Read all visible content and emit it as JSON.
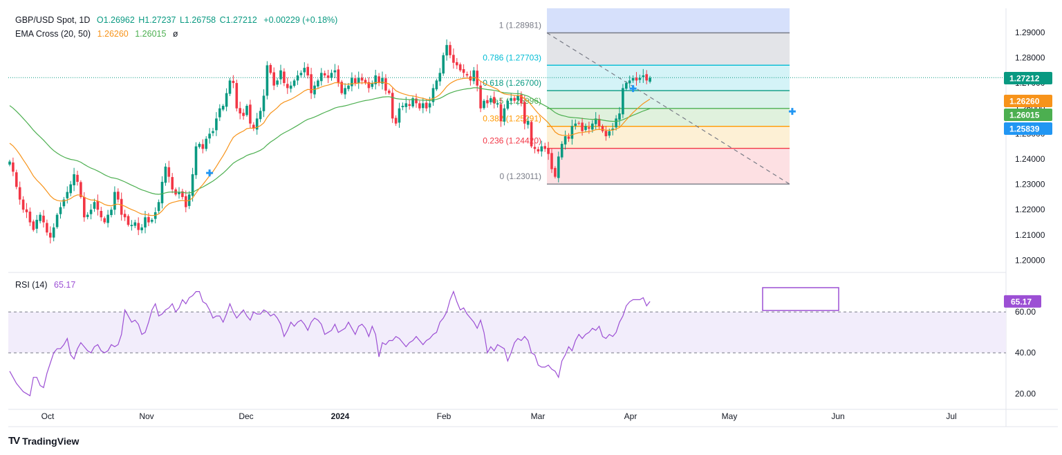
{
  "header": {
    "symbol": "GBP/USD Spot, 1D",
    "ohlc": {
      "o": "O1.26962",
      "h": "H1.27237",
      "l": "L1.26758",
      "c": "C1.27212",
      "chg": "+0.00229 (+0.18%)"
    },
    "ema_label": "EMA Cross (20, 50)",
    "ema20_value": "1.26260",
    "ema50_value": "1.26015",
    "ema_symbol": "ø",
    "rsi_label": "RSI (14)",
    "rsi_value": "65.17"
  },
  "brand": {
    "name": "TradingView",
    "logo_text": "TV"
  },
  "colors": {
    "up": "#089981",
    "down": "#f23645",
    "ema20": "#f7931a",
    "ema50": "#4caf50",
    "rsi": "#9c4fd4",
    "current_price": "#089981",
    "accent_blue": "#2196f3"
  },
  "chart_data": [
    {
      "type": "candlestick",
      "title": "GBP/USD Spot, 1D",
      "x_ticks": [
        "Oct",
        "Nov",
        "Dec",
        "2024",
        "Feb",
        "Mar",
        "Apr",
        "May",
        "Jun",
        "Jul"
      ],
      "y_ticks": [
        "1.29000",
        "1.28000",
        "1.27000",
        "1.26000",
        "1.25000",
        "1.24000",
        "1.23000",
        "1.22000",
        "1.21000",
        "1.20000"
      ],
      "ylim": [
        1.1955,
        1.2995
      ],
      "series_close": [
        1.239,
        1.235,
        1.229,
        1.224,
        1.22,
        1.219,
        1.215,
        1.212,
        1.216,
        1.218,
        1.215,
        1.211,
        1.209,
        1.213,
        1.218,
        1.221,
        1.224,
        1.227,
        1.23,
        1.234,
        1.231,
        1.225,
        1.217,
        1.218,
        1.22,
        1.223,
        1.22,
        1.217,
        1.215,
        1.218,
        1.22,
        1.227,
        1.224,
        1.218,
        1.217,
        1.214,
        1.214,
        1.215,
        1.212,
        1.213,
        1.217,
        1.215,
        1.216,
        1.219,
        1.223,
        1.231,
        1.237,
        1.233,
        1.228,
        1.226,
        1.227,
        1.225,
        1.221,
        1.226,
        1.234,
        1.245,
        1.246,
        1.244,
        1.248,
        1.25,
        1.251,
        1.256,
        1.26,
        1.261,
        1.266,
        1.271,
        1.27,
        1.26,
        1.258,
        1.257,
        1.261,
        1.254,
        1.252,
        1.256,
        1.259,
        1.265,
        1.277,
        1.274,
        1.269,
        1.271,
        1.275,
        1.27,
        1.268,
        1.269,
        1.271,
        1.273,
        1.274,
        1.276,
        1.273,
        1.266,
        1.269,
        1.271,
        1.274,
        1.273,
        1.272,
        1.274,
        1.275,
        1.27,
        1.266,
        1.268,
        1.269,
        1.272,
        1.27,
        1.272,
        1.271,
        1.27,
        1.268,
        1.27,
        1.273,
        1.27,
        1.272,
        1.267,
        1.266,
        1.256,
        1.254,
        1.26,
        1.261,
        1.262,
        1.261,
        1.264,
        1.262,
        1.26,
        1.262,
        1.26,
        1.262,
        1.268,
        1.271,
        1.274,
        1.281,
        1.285,
        1.281,
        1.278,
        1.277,
        1.275,
        1.274,
        1.273,
        1.271,
        1.275,
        1.269,
        1.26,
        1.263,
        1.262,
        1.264,
        1.262,
        1.262,
        1.255,
        1.26,
        1.263,
        1.264,
        1.263,
        1.265,
        1.262,
        1.254,
        1.255,
        1.245,
        1.244,
        1.243,
        1.245,
        1.244,
        1.242,
        1.236,
        1.233,
        1.241,
        1.246,
        1.249,
        1.248,
        1.253,
        1.254,
        1.254,
        1.251,
        1.253,
        1.252,
        1.254,
        1.256,
        1.253,
        1.251,
        1.249,
        1.251,
        1.252,
        1.256,
        1.258,
        1.268,
        1.27,
        1.271,
        1.272,
        1.271,
        1.272,
        1.273,
        1.271,
        1.2721
      ],
      "ema20_last": 1.2626,
      "ema50_last": 1.26015,
      "current_price": 1.27212,
      "price_labels": [
        "1.27212",
        "1.26260",
        "1.26015",
        "1.25839"
      ],
      "fibonacci": [
        {
          "ratio": "1",
          "level": 1.28981,
          "label": "1 (1.28981)"
        },
        {
          "ratio": "0.786",
          "level": 1.27703,
          "label": "0.786 (1.27703)"
        },
        {
          "ratio": "0.618",
          "level": 1.267,
          "label": "0.618 (1.26700)"
        },
        {
          "ratio": "0.5",
          "level": 1.25996,
          "label": "0.5 (1.25996)"
        },
        {
          "ratio": "0.382",
          "level": 1.25291,
          "label": "0.382 (1.25291)"
        },
        {
          "ratio": "0.236",
          "level": 1.2442,
          "label": "0.236 (1.24420)"
        },
        {
          "ratio": "0",
          "level": 1.23011,
          "label": "0 (1.23011)"
        }
      ],
      "trendline": {
        "from_price": 1.28981,
        "to_price": 1.23011
      }
    },
    {
      "type": "line",
      "title": "RSI (14)",
      "last_value": 65.17,
      "ylim": [
        13,
        79
      ],
      "y_ticks": [
        "60.00",
        "40.00",
        "20.00"
      ],
      "band": [
        40,
        60
      ],
      "values": [
        31,
        28,
        25,
        23,
        21,
        20,
        19,
        28,
        28,
        24,
        23,
        30,
        35,
        40,
        42,
        42,
        44,
        47,
        39,
        37,
        42,
        45,
        43,
        41,
        40,
        43,
        44,
        41,
        40,
        41,
        44,
        43,
        44,
        49,
        61,
        58,
        55,
        56,
        54,
        49,
        50,
        55,
        61,
        64,
        58,
        59,
        61,
        62,
        64,
        60,
        62,
        66,
        64,
        67,
        68,
        70,
        70,
        65,
        64,
        61,
        57,
        58,
        58,
        55,
        59,
        64,
        60,
        57,
        59,
        61,
        58,
        56,
        60,
        59,
        59,
        61,
        60,
        58,
        59,
        57,
        54,
        48,
        51,
        55,
        53,
        55,
        56,
        54,
        51,
        55,
        57,
        56,
        54,
        49,
        50,
        51,
        54,
        50,
        51,
        52,
        55,
        52,
        49,
        53,
        54,
        52,
        48,
        53,
        49,
        38,
        45,
        44,
        46,
        46,
        48,
        47,
        45,
        43,
        45,
        46,
        48,
        46,
        44,
        46,
        47,
        49,
        50,
        55,
        57,
        60,
        66,
        70,
        65,
        61,
        62,
        59,
        57,
        55,
        52,
        56,
        50,
        40,
        43,
        41,
        44,
        43,
        42,
        36,
        40,
        45,
        47,
        46,
        48,
        46,
        40,
        39,
        34,
        33,
        33,
        34,
        32,
        31,
        28,
        36,
        39,
        43,
        41,
        46,
        49,
        47,
        49,
        50,
        52,
        51,
        53,
        48,
        47,
        49,
        48,
        50,
        55,
        58,
        63,
        65,
        66,
        66,
        66,
        67,
        63,
        65.17
      ]
    }
  ]
}
